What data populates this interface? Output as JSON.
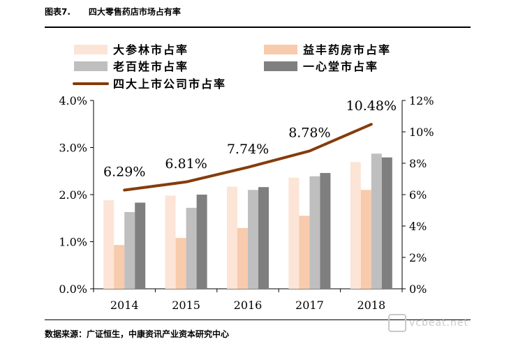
{
  "figure": {
    "number": "图表7.",
    "title": "四大零售药店市场占有率",
    "source": "数据来源：广证恒生，中康资讯产业资本研究中心",
    "watermark": "vcbeat.net"
  },
  "chart_data": {
    "type": "bar",
    "categories": [
      "2014",
      "2015",
      "2016",
      "2017",
      "2018"
    ],
    "ylim_left": [
      0,
      4.0
    ],
    "left_ticks": [
      "0.0%",
      "1.0%",
      "2.0%",
      "3.0%",
      "4.0%"
    ],
    "ylim_right": [
      0,
      12
    ],
    "right_ticks": [
      "0%",
      "2%",
      "4%",
      "6%",
      "8%",
      "10%",
      "12%"
    ],
    "grid": false,
    "legend_placement": "top",
    "series": [
      {
        "name": "大参林市占率",
        "type": "bar",
        "axis": "left",
        "color": "#fce4d6",
        "values": [
          1.88,
          1.98,
          2.17,
          2.36,
          2.69
        ]
      },
      {
        "name": "益丰药房市占率",
        "type": "bar",
        "axis": "left",
        "color": "#f8cbad",
        "values": [
          0.93,
          1.08,
          1.29,
          1.55,
          2.1
        ]
      },
      {
        "name": "老百姓市占率",
        "type": "bar",
        "axis": "left",
        "color": "#bfbfbf",
        "values": [
          1.63,
          1.72,
          2.1,
          2.39,
          2.87
        ]
      },
      {
        "name": "一心堂市占率",
        "type": "bar",
        "axis": "left",
        "color": "#7f7f7f",
        "values": [
          1.83,
          2.0,
          2.16,
          2.46,
          2.79
        ]
      },
      {
        "name": "四大上市公司市占率",
        "type": "line",
        "axis": "right",
        "color": "#843c0c",
        "values": [
          6.29,
          6.81,
          7.74,
          8.78,
          10.48
        ],
        "labels": [
          "6.29%",
          "6.81%",
          "7.74%",
          "8.78%",
          "10.48%"
        ]
      }
    ]
  }
}
